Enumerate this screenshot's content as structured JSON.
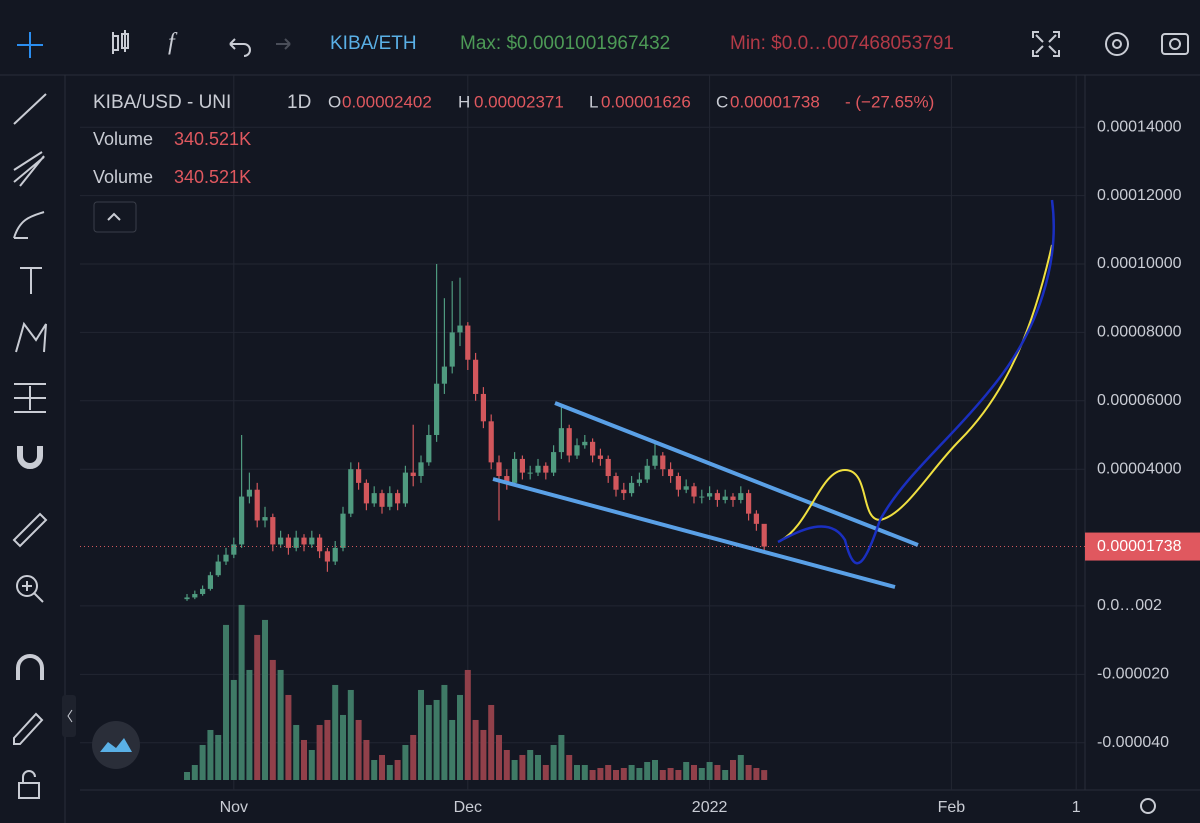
{
  "toolbar": {
    "symbol": "KIBA/ETH",
    "max": "Max: $0.0001001967432",
    "min": "Min: $0.0…007468053791"
  },
  "legend": {
    "symbol": "KIBA/USD - UNI",
    "interval": "1D",
    "o": "O",
    "open": "0.00002402",
    "h": "H",
    "high": "0.00002371",
    "l": "L",
    "low": "0.00001626",
    "c": "C",
    "close": "0.00001738",
    "change": "- (−27.65%)",
    "volume_rows": [
      {
        "label": "Volume",
        "value": "340.521K"
      },
      {
        "label": "Volume",
        "value": "340.521K"
      }
    ]
  },
  "price_label": "0.00001738",
  "chart_data": {
    "type": "candlestick",
    "up_color": "#4f9a7f",
    "down_color": "#d2575c",
    "volume_up_color": "#3f7a66",
    "volume_down_color": "#91404a",
    "xlim": [
      -13.72,
      115.13
    ],
    "xticks": [
      {
        "value": 6,
        "label": "Nov"
      },
      {
        "value": 36,
        "label": "Dec"
      },
      {
        "value": 67,
        "label": "2022"
      },
      {
        "value": 98,
        "label": "Feb"
      },
      {
        "value": 114,
        "label": "1"
      }
    ],
    "ylim": [
      -5.234e-05,
      0.00015526
    ],
    "yticks": [
      {
        "value": 0.00014,
        "label": "0.00014000"
      },
      {
        "value": 0.00012,
        "label": "0.00012000"
      },
      {
        "value": 0.0001,
        "label": "0.00010000"
      },
      {
        "value": 8e-05,
        "label": "0.00008000"
      },
      {
        "value": 6e-05,
        "label": "0.00006000"
      },
      {
        "value": 4e-05,
        "label": "0.00004000"
      },
      {
        "value": 2e-08,
        "label": "0.0…002"
      },
      {
        "value": -2e-05,
        "label": "-0.000020"
      },
      {
        "value": -4e-05,
        "label": "-0.000040"
      }
    ],
    "grid": true,
    "open": [
      2e-06,
      2.5e-06,
      3.5e-06,
      5e-06,
      9e-06,
      1.3e-05,
      1.5e-05,
      1.8e-05,
      3.2e-05,
      3.4e-05,
      2.5e-05,
      2.6e-05,
      1.8e-05,
      2e-05,
      1.7e-05,
      2e-05,
      1.8e-05,
      2e-05,
      1.6e-05,
      1.3e-05,
      1.7e-05,
      2.7e-05,
      4e-05,
      3.6e-05,
      3e-05,
      3.3e-05,
      2.9e-05,
      3.3e-05,
      3e-05,
      3.9e-05,
      3.8e-05,
      4.2e-05,
      5e-05,
      6.5e-05,
      7e-05,
      8e-05,
      8.2e-05,
      7.2e-05,
      6.2e-05,
      5.4e-05,
      4.2e-05,
      3.8e-05,
      3.6e-05,
      4.3e-05,
      3.9e-05,
      3.9e-05,
      4.1e-05,
      3.9e-05,
      4.5e-05,
      5.2e-05,
      4.4e-05,
      4.7e-05,
      4.8e-05,
      4.4e-05,
      4.3e-05,
      3.8e-05,
      3.4e-05,
      3.3e-05,
      3.6e-05,
      3.7e-05,
      4.1e-05,
      4.4e-05,
      4e-05,
      3.8e-05,
      3.4e-05,
      3.5e-05,
      3.2e-05,
      3.2e-05,
      3.3e-05,
      3.1e-05,
      3.2e-05,
      3.1e-05,
      3.3e-05,
      2.7e-05,
      2.402e-05
    ],
    "high": [
      3.5e-06,
      4.5e-06,
      6e-06,
      1e-05,
      1.5e-05,
      1.7e-05,
      2e-05,
      5e-05,
      3.9e-05,
      3.6e-05,
      2.9e-05,
      2.7e-05,
      2.2e-05,
      2.1e-05,
      2.2e-05,
      2.1e-05,
      2.2e-05,
      2.1e-05,
      1.7e-05,
      1.9e-05,
      2.9e-05,
      4.2e-05,
      4.2e-05,
      3.7e-05,
      3.5e-05,
      3.4e-05,
      3.5e-05,
      3.4e-05,
      4.1e-05,
      5.3e-05,
      4.4e-05,
      5.3e-05,
      0.0001,
      9e-05,
      9.5e-05,
      9.6e-05,
      8.3e-05,
      7.4e-05,
      6.4e-05,
      5.6e-05,
      4.4e-05,
      4e-05,
      4.5e-05,
      4.4e-05,
      4.1e-05,
      4.3e-05,
      4.2e-05,
      4.7e-05,
      5.9e-05,
      5.3e-05,
      4.9e-05,
      5e-05,
      4.9e-05,
      4.6e-05,
      4.4e-05,
      3.9e-05,
      3.6e-05,
      3.8e-05,
      3.9e-05,
      4.3e-05,
      4.8e-05,
      4.5e-05,
      4.2e-05,
      3.9e-05,
      3.7e-05,
      3.6e-05,
      3.4e-05,
      3.5e-05,
      3.4e-05,
      3.4e-05,
      3.3e-05,
      3.5e-05,
      3.4e-05,
      2.8e-05,
      2.371e-05
    ],
    "low": [
      1.5e-06,
      2e-06,
      3e-06,
      4.5e-06,
      8.5e-06,
      1.2e-05,
      1.4e-05,
      1.7e-05,
      3e-05,
      2.3e-05,
      2.3e-05,
      1.6e-05,
      1.7e-05,
      1.5e-05,
      1.6e-05,
      1.6e-05,
      1.7e-05,
      1.4e-05,
      1e-05,
      1.2e-05,
      1.6e-05,
      2.6e-05,
      3.4e-05,
      2.8e-05,
      2.9e-05,
      2.7e-05,
      2.8e-05,
      2.8e-05,
      2.9e-05,
      3.5e-05,
      3.6e-05,
      4.1e-05,
      4.8e-05,
      6.2e-05,
      6.8e-05,
      7.6e-05,
      6.9e-05,
      6e-05,
      5.2e-05,
      4e-05,
      2.5e-05,
      3.4e-05,
      3.5e-05,
      3.7e-05,
      3.7e-05,
      3.8e-05,
      3.7e-05,
      3.8e-05,
      4.3e-05,
      4.2e-05,
      4.3e-05,
      4.6e-05,
      4.2e-05,
      4.1e-05,
      3.6e-05,
      3.2e-05,
      3.1e-05,
      3.2e-05,
      3.5e-05,
      3.6e-05,
      4e-05,
      3.8e-05,
      3.6e-05,
      3.2e-05,
      3.3e-05,
      3e-05,
      3e-05,
      3.1e-05,
      2.9e-05,
      3e-05,
      2.9e-05,
      3e-05,
      2.5e-05,
      2.2e-05,
      1.626e-05
    ],
    "close": [
      2.5e-06,
      3.5e-06,
      5e-06,
      9e-06,
      1.3e-05,
      1.5e-05,
      1.8e-05,
      3.2e-05,
      3.4e-05,
      2.5e-05,
      2.6e-05,
      1.8e-05,
      2e-05,
      1.7e-05,
      2e-05,
      1.8e-05,
      2e-05,
      1.6e-05,
      1.3e-05,
      1.7e-05,
      2.7e-05,
      4e-05,
      3.6e-05,
      3e-05,
      3.3e-05,
      2.9e-05,
      3.3e-05,
      3e-05,
      3.9e-05,
      3.8e-05,
      4.2e-05,
      5e-05,
      6.5e-05,
      7e-05,
      8e-05,
      8.2e-05,
      7.2e-05,
      6.2e-05,
      5.4e-05,
      4.2e-05,
      3.8e-05,
      3.6e-05,
      4.3e-05,
      3.9e-05,
      3.9e-05,
      4.1e-05,
      3.9e-05,
      4.5e-05,
      5.2e-05,
      4.4e-05,
      4.7e-05,
      4.8e-05,
      4.4e-05,
      4.3e-05,
      3.8e-05,
      3.4e-05,
      3.3e-05,
      3.6e-05,
      3.7e-05,
      4.1e-05,
      4.4e-05,
      4e-05,
      3.8e-05,
      3.4e-05,
      3.5e-05,
      3.2e-05,
      3.2e-05,
      3.3e-05,
      3.1e-05,
      3.2e-05,
      3.1e-05,
      3.3e-05,
      2.7e-05,
      2.402e-05,
      1.738e-05
    ],
    "volume_ylim": [
      0,
      6000000
    ],
    "volume": [
      274400,
      514500,
      1200500,
      1715000,
      1543500,
      5316500,
      3430000,
      6002500,
      3773000,
      4973500,
      5488000,
      4116000,
      3773000,
      2915500,
      1886500,
      1372000,
      1029000,
      1886500,
      2058000,
      3258500,
      2229500,
      3087000,
      2058000,
      1372000,
      686000,
      857500,
      514500,
      686000,
      1200500,
      1543500,
      3087000,
      2572500,
      2744000,
      3258500,
      2058000,
      2915500,
      3773000,
      2058000,
      1715000,
      2572500,
      1543500,
      1029000,
      686000,
      857500,
      1029000,
      857500,
      514500,
      1200500,
      1543500,
      857500,
      514500,
      514500,
      343000,
      411600,
      514500,
      343000,
      411600,
      514500,
      411600,
      617400,
      686000,
      343000,
      411600,
      343000,
      617400,
      514500,
      411600,
      617400,
      514500,
      343000,
      686000,
      857500,
      514500,
      411600,
      340521
    ]
  }
}
